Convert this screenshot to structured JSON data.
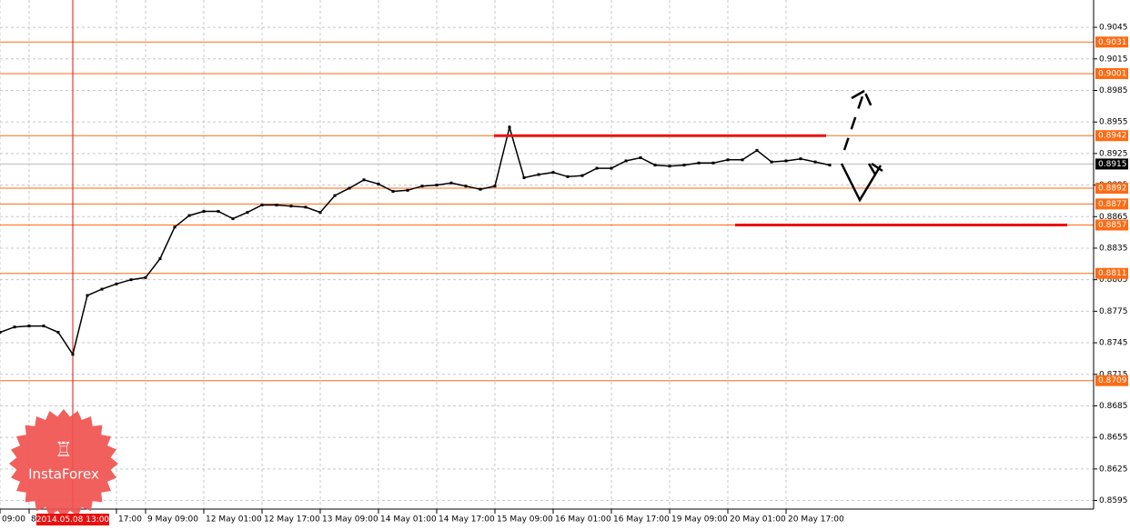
{
  "chart_data": {
    "type": "line",
    "color": "#000000",
    "categories": [
      "09:00",
      null,
      "8",
      null,
      null,
      null,
      null,
      null,
      "17:00",
      null,
      "9 May 09:00",
      null,
      null,
      null,
      "12 May 01:00",
      null,
      null,
      null,
      "12 May 17:00",
      null,
      null,
      null,
      "13 May 09:00",
      null,
      null,
      null,
      "14 May 01:00",
      null,
      null,
      null,
      "14 May 17:00",
      null,
      null,
      null,
      "15 May 09:00",
      null,
      null,
      null,
      "16 May 01:00",
      null,
      null,
      null,
      "16 May 17:00",
      null,
      null,
      null,
      "19 May 09:00",
      null,
      null,
      null,
      "20 May 01:00",
      null,
      null,
      null,
      "20 May 17:00",
      null,
      null,
      null
    ],
    "values": [
      0.8755,
      0.876,
      0.8761,
      0.8761,
      0.8755,
      0.8734,
      0.879,
      0.8796,
      0.8801,
      0.8805,
      0.8807,
      0.8825,
      0.8855,
      0.8866,
      0.887,
      0.887,
      0.8863,
      0.8869,
      0.8876,
      0.8876,
      0.8875,
      0.8874,
      0.8869,
      0.8885,
      0.8892,
      0.89,
      0.8896,
      0.8889,
      0.889,
      0.8894,
      0.8895,
      0.8897,
      0.8894,
      0.8891,
      0.8894,
      0.895,
      0.8902,
      0.8905,
      0.8907,
      0.8903,
      0.8904,
      0.8911,
      0.8911,
      0.8918,
      0.8921,
      0.8914,
      0.8913,
      0.8914,
      0.8916,
      0.8916,
      0.8919,
      0.8919,
      0.8928,
      0.8917,
      0.8918,
      0.892,
      0.8917,
      0.8914
    ],
    "ylim": [
      0.8573,
      0.9071
    ],
    "yticks": [
      0.9045,
      0.9015,
      0.8985,
      0.8955,
      0.8925,
      0.8895,
      0.8865,
      0.8835,
      0.8805,
      0.8775,
      0.8745,
      0.8715,
      0.8685,
      0.8655,
      0.8625,
      0.8595
    ],
    "grid": true,
    "levels": [
      0.9031,
      0.9001,
      0.8942,
      0.8892,
      0.8877,
      0.8857,
      0.8811,
      0.8709
    ],
    "level_color": "#ff6a13",
    "current_price": 0.8915,
    "drawn_lines": [
      {
        "value": 0.8942,
        "color": "#ee1111"
      },
      {
        "value": 0.8857,
        "color": "#ee1111"
      }
    ],
    "crosshair_label": "2014.05.08 13:00",
    "logo": "InstaForex"
  }
}
